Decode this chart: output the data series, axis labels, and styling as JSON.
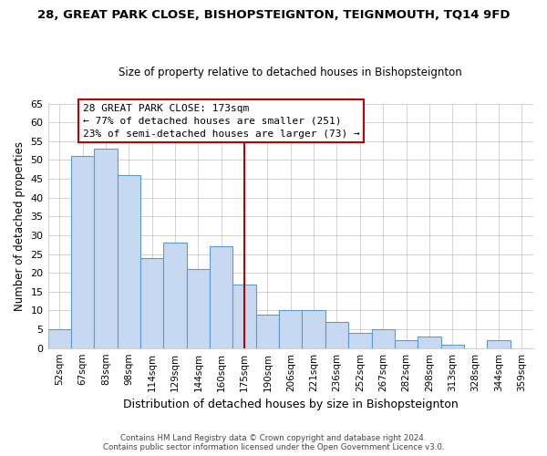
{
  "title": "28, GREAT PARK CLOSE, BISHOPSTEIGNTON, TEIGNMOUTH, TQ14 9FD",
  "subtitle": "Size of property relative to detached houses in Bishopsteignton",
  "xlabel": "Distribution of detached houses by size in Bishopsteignton",
  "ylabel": "Number of detached properties",
  "categories": [
    "52sqm",
    "67sqm",
    "83sqm",
    "98sqm",
    "114sqm",
    "129sqm",
    "144sqm",
    "160sqm",
    "175sqm",
    "190sqm",
    "206sqm",
    "221sqm",
    "236sqm",
    "252sqm",
    "267sqm",
    "282sqm",
    "298sqm",
    "313sqm",
    "328sqm",
    "344sqm",
    "359sqm"
  ],
  "values": [
    5,
    51,
    53,
    46,
    24,
    28,
    21,
    27,
    17,
    9,
    10,
    10,
    7,
    4,
    5,
    2,
    3,
    1,
    0,
    2,
    0
  ],
  "bar_color": "#c6d9f0",
  "bar_edge_color": "#5b9bd5",
  "ylim": [
    0,
    65
  ],
  "yticks": [
    0,
    5,
    10,
    15,
    20,
    25,
    30,
    35,
    40,
    45,
    50,
    55,
    60,
    65
  ],
  "vline_x_index": 8,
  "vline_color": "#c00000",
  "annotation_title": "28 GREAT PARK CLOSE: 173sqm",
  "annotation_line1": "← 77% of detached houses are smaller (251)",
  "annotation_line2": "23% of semi-detached houses are larger (73) →",
  "annotation_box_color": "#ffffff",
  "annotation_box_edge": "#c00000",
  "footer1": "Contains HM Land Registry data © Crown copyright and database right 2024.",
  "footer2": "Contains public sector information licensed under the Open Government Licence v3.0.",
  "background_color": "#ffffff",
  "grid_color": "#c0c0c0"
}
